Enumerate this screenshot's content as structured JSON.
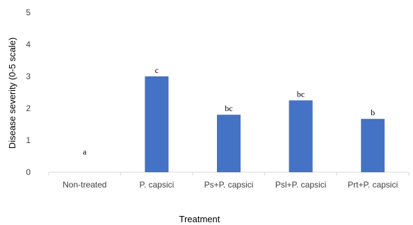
{
  "chart_data": {
    "type": "bar",
    "categories": [
      "Non-treated",
      "P. capsici",
      "Ps+P. capsici",
      "Psl+P. capsici",
      "Prt+P. capsici"
    ],
    "values": [
      0,
      3.0,
      1.8,
      2.25,
      1.67
    ],
    "data_labels": [
      "a",
      "c",
      "bc",
      "bc",
      "b"
    ],
    "xlabel": "Treatment",
    "ylabel": "Disease severity (0-5 scale)",
    "ylim": [
      0,
      5
    ],
    "yticks": [
      "0",
      "1",
      "2",
      "3",
      "4",
      "5"
    ],
    "grid": false,
    "legend": "none",
    "bar_color": "#4472C4",
    "axis_color": "#D9D9D9"
  }
}
